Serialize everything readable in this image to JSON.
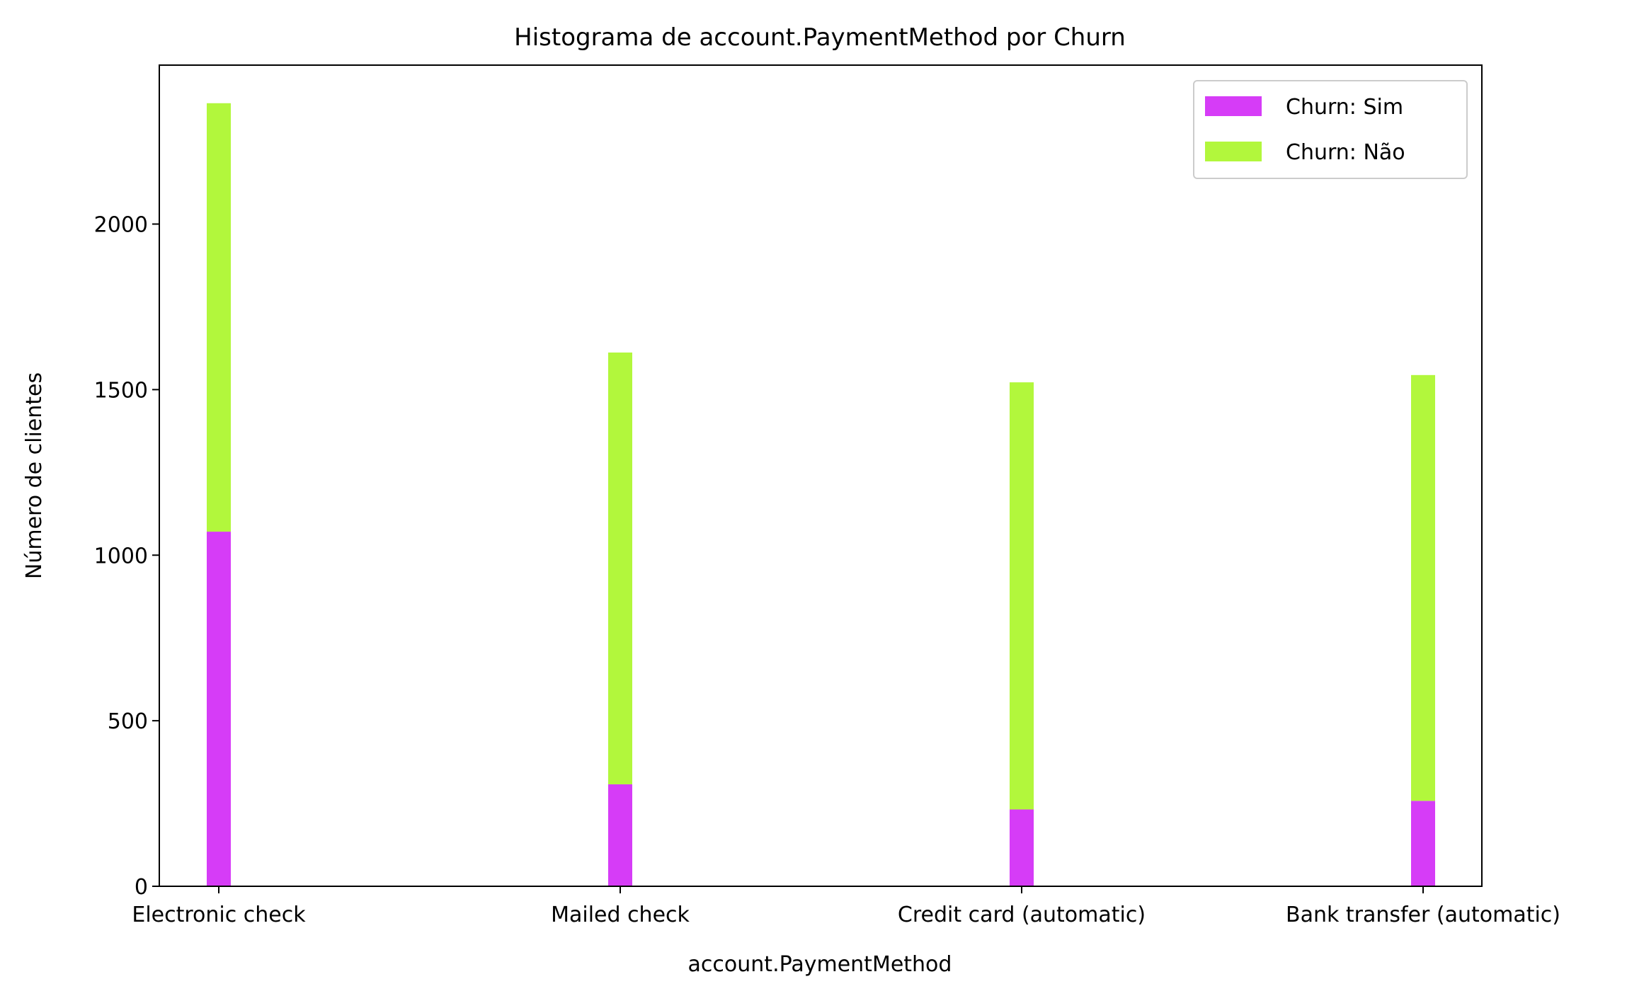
{
  "chart_data": {
    "type": "bar",
    "stacked": true,
    "title": "Histograma de account.PaymentMethod por Churn",
    "xlabel": "account.PaymentMethod",
    "ylabel": "Número de clientes",
    "categories": [
      "Electronic check",
      "Mailed check",
      "Credit card (automatic)",
      "Bank transfer (automatic)"
    ],
    "series": [
      {
        "name": "Churn: Sim",
        "color": "#d63cf7",
        "values": [
          1071,
          308,
          232,
          258
        ]
      },
      {
        "name": "Churn: Não",
        "color": "#b2f73c",
        "values": [
          1294,
          1304,
          1290,
          1286
        ]
      }
    ],
    "ylim": [
      0,
      2480
    ],
    "yticks": [
      0,
      500,
      1000,
      1500,
      2000
    ],
    "legend_position": "top-right",
    "grid": false
  }
}
